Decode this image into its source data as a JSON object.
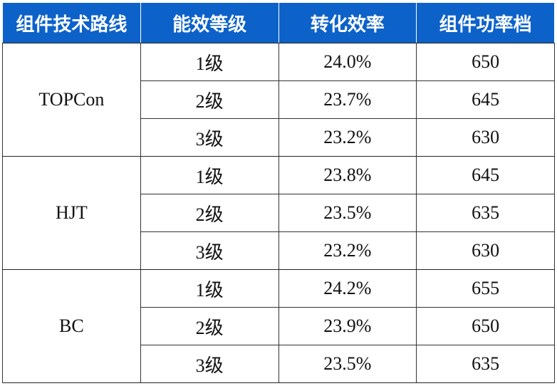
{
  "table": {
    "header": [
      "组件技术路线",
      "能效等级",
      "转化效率",
      "组件功率档"
    ],
    "groups": [
      {
        "name": "TOPCon",
        "rows": [
          [
            "1级",
            "24.0%",
            "650"
          ],
          [
            "2级",
            "23.7%",
            "645"
          ],
          [
            "3级",
            "23.2%",
            "630"
          ]
        ]
      },
      {
        "name": "HJT",
        "rows": [
          [
            "1级",
            "23.8%",
            "645"
          ],
          [
            "2级",
            "23.5%",
            "635"
          ],
          [
            "3级",
            "23.2%",
            "630"
          ]
        ]
      },
      {
        "name": "BC",
        "rows": [
          [
            "1级",
            "24.2%",
            "655"
          ],
          [
            "2级",
            "23.9%",
            "650"
          ],
          [
            "3级",
            "23.5%",
            "635"
          ]
        ]
      }
    ]
  }
}
